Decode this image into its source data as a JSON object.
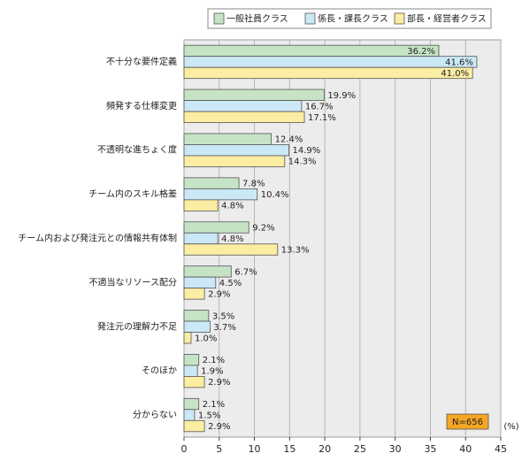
{
  "chart_data": {
    "type": "hbar",
    "categories": [
      "不十分な要件定義",
      "頻発する仕様変更",
      "不透明な進ちょく度",
      "チーム内のスキル格差",
      "チーム内および発注元との情報共有体制",
      "不適当なリソース配分",
      "発注元の理解力不足",
      "そのほか",
      "分からない"
    ],
    "series": [
      {
        "name": "一般社員クラス",
        "color": "#c6e3c6",
        "values": [
          36.2,
          19.9,
          12.4,
          7.8,
          9.2,
          6.7,
          3.5,
          2.1,
          2.1
        ],
        "value_labels": [
          "36.2%",
          "19.9%",
          "12.4%",
          "7.8%",
          "9.2%",
          "6.7%",
          "3.5%",
          "2.1%",
          "2.1%"
        ]
      },
      {
        "name": "係長・課長クラス",
        "color": "#cbe8f6",
        "values": [
          41.6,
          16.7,
          14.9,
          10.4,
          4.8,
          4.5,
          3.7,
          1.9,
          1.5
        ],
        "value_labels": [
          "41.6%",
          "16.7%",
          "14.9%",
          "10.4%",
          "4.8%",
          "4.5%",
          "3.7%",
          "1.9%",
          "1.5%"
        ]
      },
      {
        "name": "部長・経営者クラス",
        "color": "#fbeda2",
        "values": [
          41.0,
          17.1,
          14.3,
          4.8,
          13.3,
          2.9,
          1.0,
          2.9,
          2.9
        ],
        "value_labels": [
          "41.0%",
          "17.1%",
          "14.3%",
          "4.8%",
          "13.3%",
          "2.9%",
          "1.0%",
          "2.9%",
          "2.9%"
        ]
      }
    ],
    "xlim": [
      0,
      45
    ],
    "xticks": [
      0,
      5,
      10,
      15,
      20,
      25,
      30,
      35,
      40,
      45
    ],
    "grid": true,
    "x_unit": "(%)",
    "annotation": "N=656",
    "legend": "top"
  }
}
